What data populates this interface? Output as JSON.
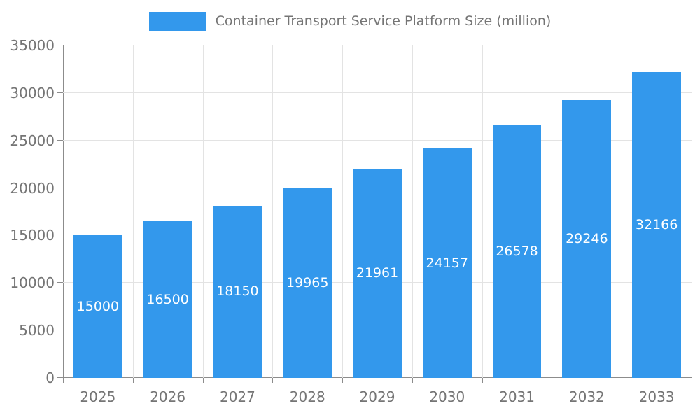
{
  "legend": {
    "title": "Container Transport Service Platform Size (million)"
  },
  "chart_data": {
    "type": "bar",
    "title": "Container Transport Service Platform Size (million)",
    "categories": [
      "2025",
      "2026",
      "2027",
      "2028",
      "2029",
      "2030",
      "2031",
      "2032",
      "2033"
    ],
    "values": [
      15000,
      16500,
      18150,
      19965,
      21961,
      24157,
      26578,
      29246,
      32166
    ],
    "value_labels": [
      "15000",
      "16500",
      "18150",
      "19965",
      "21961",
      "24157",
      "26578",
      "29246",
      "32166"
    ],
    "xlabel": "",
    "ylabel": "",
    "ylim": [
      0,
      35000
    ],
    "yticks": [
      0,
      5000,
      10000,
      15000,
      20000,
      25000,
      30000,
      35000
    ],
    "grid": true,
    "legend_position": "top",
    "colors": {
      "bar": "#3398EC",
      "value_label": "#ffffff",
      "axis_label": "#757575",
      "title": "#757575",
      "grid_line": "#e3e3e3",
      "axis_line": "#8c8c8c"
    },
    "bar_width_fraction": 0.7
  }
}
